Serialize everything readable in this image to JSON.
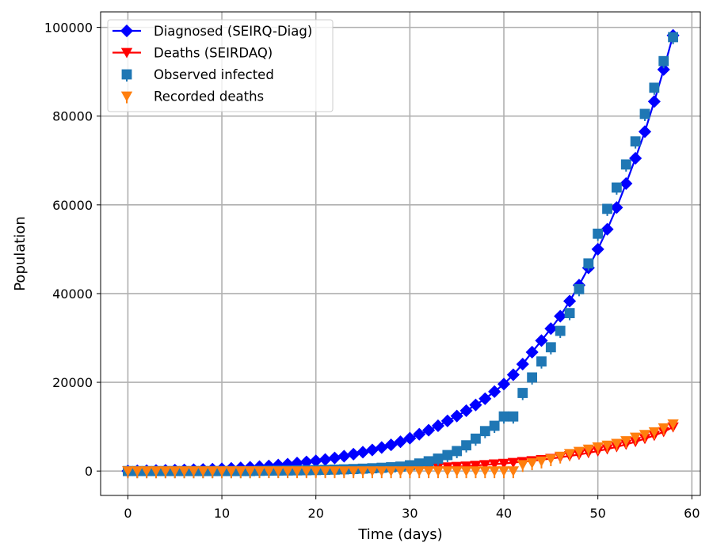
{
  "chart_data": {
    "type": "line",
    "xlabel": "Time (days)",
    "ylabel": "Population",
    "xlim": [
      -2.9,
      60.9
    ],
    "ylim": [
      -5500,
      103500
    ],
    "xticks": [
      0,
      10,
      20,
      30,
      40,
      50,
      60
    ],
    "yticks": [
      0,
      20000,
      40000,
      60000,
      80000,
      100000
    ],
    "grid": true,
    "legend_position": "top-left",
    "series": [
      {
        "name": "Diagnosed (SEIRQ-Diag)",
        "kind": "line-marker",
        "marker": "diamond",
        "color": "#0000ff",
        "x": [
          0,
          1,
          2,
          3,
          4,
          5,
          6,
          7,
          8,
          9,
          10,
          11,
          12,
          13,
          14,
          15,
          16,
          17,
          18,
          19,
          20,
          21,
          22,
          23,
          24,
          25,
          26,
          27,
          28,
          29,
          30,
          31,
          32,
          33,
          34,
          35,
          36,
          37,
          38,
          39,
          40,
          41,
          42,
          43,
          44,
          45,
          46,
          47,
          48,
          49,
          50,
          51,
          52,
          53,
          54,
          55,
          56,
          57,
          58
        ],
        "values": [
          0,
          40,
          80,
          120,
          160,
          200,
          250,
          300,
          360,
          420,
          500,
          600,
          720,
          850,
          1000,
          1150,
          1350,
          1550,
          1800,
          2050,
          2300,
          2600,
          2950,
          3350,
          3800,
          4250,
          4750,
          5300,
          5900,
          6600,
          7400,
          8300,
          9200,
          10200,
          11300,
          12400,
          13600,
          14900,
          16300,
          17900,
          19600,
          21700,
          24100,
          26800,
          29400,
          32100,
          34900,
          38300,
          41900,
          45800,
          50000,
          54500,
          59400,
          64800,
          70500,
          76500,
          83300,
          90500,
          98200
        ]
      },
      {
        "name": "Deaths (SEIRDAQ)",
        "kind": "line-marker",
        "marker": "triangle-down",
        "color": "#ff0000",
        "x": [
          0,
          1,
          2,
          3,
          4,
          5,
          6,
          7,
          8,
          9,
          10,
          11,
          12,
          13,
          14,
          15,
          16,
          17,
          18,
          19,
          20,
          21,
          22,
          23,
          24,
          25,
          26,
          27,
          28,
          29,
          30,
          31,
          32,
          33,
          34,
          35,
          36,
          37,
          38,
          39,
          40,
          41,
          42,
          43,
          44,
          45,
          46,
          47,
          48,
          49,
          50,
          51,
          52,
          53,
          54,
          55,
          56,
          57,
          58
        ],
        "values": [
          0,
          0,
          0,
          0,
          0,
          0,
          0,
          10,
          10,
          20,
          20,
          30,
          40,
          50,
          60,
          70,
          80,
          100,
          110,
          130,
          150,
          170,
          200,
          230,
          260,
          300,
          340,
          390,
          440,
          500,
          560,
          640,
          720,
          810,
          900,
          1000,
          1100,
          1250,
          1400,
          1550,
          1700,
          1900,
          2100,
          2300,
          2550,
          2800,
          3100,
          3400,
          3700,
          4100,
          4500,
          4950,
          5450,
          6000,
          6600,
          7300,
          8000,
          8850,
          9900
        ]
      },
      {
        "name": "Observed infected",
        "kind": "marker",
        "marker": "square",
        "color": "#1f77b4",
        "x": [
          0,
          1,
          2,
          3,
          4,
          5,
          6,
          7,
          8,
          9,
          10,
          11,
          12,
          13,
          14,
          15,
          16,
          17,
          18,
          19,
          20,
          21,
          22,
          23,
          24,
          25,
          26,
          27,
          28,
          29,
          30,
          31,
          32,
          33,
          34,
          35,
          36,
          37,
          38,
          39,
          40,
          41,
          42,
          43,
          44,
          45,
          46,
          47,
          48,
          49,
          50,
          51,
          52,
          53,
          54,
          55,
          56,
          57,
          58
        ],
        "values": [
          0,
          0,
          0,
          0,
          0,
          0,
          0,
          0,
          0,
          0,
          0,
          0,
          0,
          0,
          50,
          80,
          100,
          120,
          150,
          180,
          220,
          270,
          320,
          380,
          450,
          530,
          620,
          730,
          850,
          1000,
          1300,
          1700,
          2200,
          2800,
          3600,
          4500,
          5800,
          7300,
          9000,
          10200,
          12300,
          12300,
          17600,
          21100,
          24700,
          27900,
          31600,
          35600,
          41000,
          46800,
          53500,
          59100,
          63900,
          69100,
          74300,
          80500,
          86400,
          92400,
          97800
        ]
      },
      {
        "name": "Recorded deaths",
        "kind": "marker",
        "marker": "triangle-down",
        "color": "#ff7f0e",
        "x": [
          0,
          1,
          2,
          3,
          4,
          5,
          6,
          7,
          8,
          9,
          10,
          11,
          12,
          13,
          14,
          15,
          16,
          17,
          18,
          19,
          20,
          21,
          22,
          23,
          24,
          25,
          26,
          27,
          28,
          29,
          30,
          31,
          32,
          33,
          34,
          35,
          36,
          37,
          38,
          39,
          40,
          41,
          42,
          43,
          44,
          45,
          46,
          47,
          48,
          49,
          50,
          51,
          52,
          53,
          54,
          55,
          56,
          57,
          58
        ],
        "values": [
          0,
          0,
          0,
          0,
          0,
          0,
          0,
          0,
          0,
          0,
          0,
          0,
          0,
          0,
          0,
          0,
          0,
          0,
          0,
          0,
          0,
          0,
          0,
          0,
          0,
          0,
          0,
          0,
          0,
          0,
          0,
          0,
          0,
          0,
          0,
          0,
          0,
          0,
          0,
          0,
          0,
          0,
          1400,
          1800,
          2200,
          2700,
          3300,
          3900,
          4400,
          4900,
          5400,
          5800,
          6200,
          6800,
          7600,
          8200,
          8800,
          9700,
          10600
        ]
      }
    ]
  }
}
